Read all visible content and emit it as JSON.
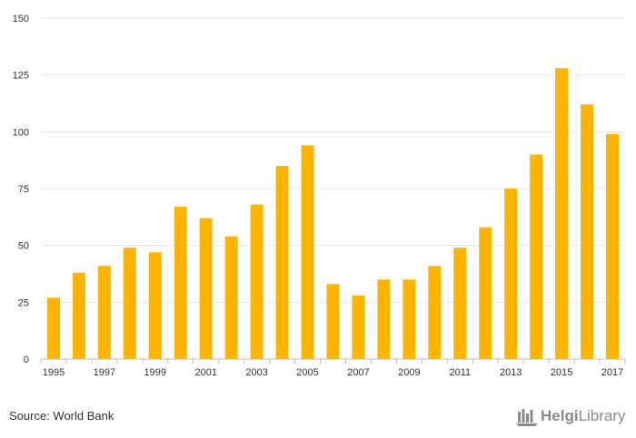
{
  "chart_data": {
    "type": "bar",
    "categories": [
      "1995",
      "1996",
      "1997",
      "1998",
      "1999",
      "2000",
      "2001",
      "2002",
      "2003",
      "2004",
      "2005",
      "2006",
      "2007",
      "2008",
      "2009",
      "2010",
      "2011",
      "2012",
      "2013",
      "2014",
      "2015",
      "2016",
      "2017"
    ],
    "x_tick_labels": [
      "1995",
      "1997",
      "1999",
      "2001",
      "2003",
      "2005",
      "2007",
      "2009",
      "2011",
      "2013",
      "2015",
      "2017"
    ],
    "values": [
      27,
      38,
      41,
      49,
      47,
      67,
      62,
      54,
      68,
      85,
      94,
      33,
      28,
      35,
      35,
      41,
      49,
      58,
      75,
      90,
      128,
      112,
      99
    ],
    "y_ticks": [
      0,
      25,
      50,
      75,
      100,
      125,
      150
    ],
    "ylim": [
      0,
      150
    ],
    "title": "",
    "xlabel": "",
    "ylabel": "",
    "grid": true,
    "bar_color": "#ffb400"
  },
  "footer": {
    "source": "Source: World Bank",
    "logo_text_bold": "Helgi",
    "logo_text_light": "Library"
  }
}
